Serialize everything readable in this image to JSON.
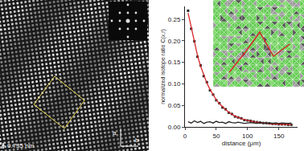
{
  "chart_data": {
    "type": "line",
    "xlabel": "distance (μm)",
    "ylabel": "normalized isotope ratio C(x,r)",
    "x": [
      5,
      10,
      15,
      20,
      25,
      30,
      35,
      40,
      45,
      50,
      55,
      60,
      65,
      70,
      75,
      80,
      85,
      90,
      95,
      100,
      105,
      110,
      115,
      120,
      125,
      130,
      135,
      140,
      145,
      150,
      155,
      160,
      165,
      170
    ],
    "series": [
      {
        "type": "scatter",
        "color": "#222222",
        "marker": "square",
        "values": [
          0.27,
          0.228,
          0.199,
          0.163,
          0.143,
          0.118,
          0.104,
          0.085,
          0.075,
          0.062,
          0.055,
          0.045,
          0.041,
          0.033,
          0.03,
          0.024,
          0.022,
          0.02,
          0.016,
          0.015,
          0.014,
          0.012,
          0.011,
          0.01,
          0.009,
          0.009,
          0.008,
          0.007,
          0.007,
          0.006,
          0.006,
          0.006,
          0.005,
          0.005
        ]
      },
      {
        "type": "line",
        "color": "#d62728",
        "line_style": "solid",
        "values": [
          0.265,
          0.23,
          0.196,
          0.166,
          0.141,
          0.12,
          0.102,
          0.087,
          0.074,
          0.063,
          0.054,
          0.046,
          0.04,
          0.034,
          0.029,
          0.025,
          0.022,
          0.019,
          0.017,
          0.015,
          0.013,
          0.012,
          0.011,
          0.01,
          0.009,
          0.008,
          0.008,
          0.007,
          0.007,
          0.006,
          0.006,
          0.006,
          0.006,
          0.005
        ]
      },
      {
        "type": "line",
        "color": "#222222",
        "line_style": "solid",
        "values": [
          0.012,
          0.009,
          0.014,
          0.01,
          0.013,
          0.008,
          0.011,
          0.012,
          0.009,
          0.013,
          0.01,
          0.011,
          0.008,
          0.012,
          0.01,
          0.009,
          0.011,
          0.01,
          0.008,
          0.009,
          0.01,
          0.009,
          0.008,
          0.01,
          0.009,
          0.008,
          0.009,
          0.008,
          0.009,
          0.008,
          0.009,
          0.008,
          0.008,
          0.009
        ]
      }
    ],
    "xlim": [
      0,
      180
    ],
    "xticks": [
      0,
      50,
      100,
      150
    ],
    "ylim": [
      0,
      0.28
    ],
    "yticks": [
      {
        "value": 0,
        "label": "0.00"
      },
      {
        "value": 0.05,
        "label": "0.05"
      },
      {
        "value": 0.1,
        "label": "0.10"
      },
      {
        "value": 0.15,
        "label": "0.15"
      },
      {
        "value": 0.2,
        "label": "0.20"
      },
      {
        "value": 0.25,
        "label": "0.25"
      }
    ],
    "grid": false
  },
  "image_panel": {
    "scale_bar": "0.735 nm",
    "axis_labels": [
      "a",
      "b"
    ]
  }
}
